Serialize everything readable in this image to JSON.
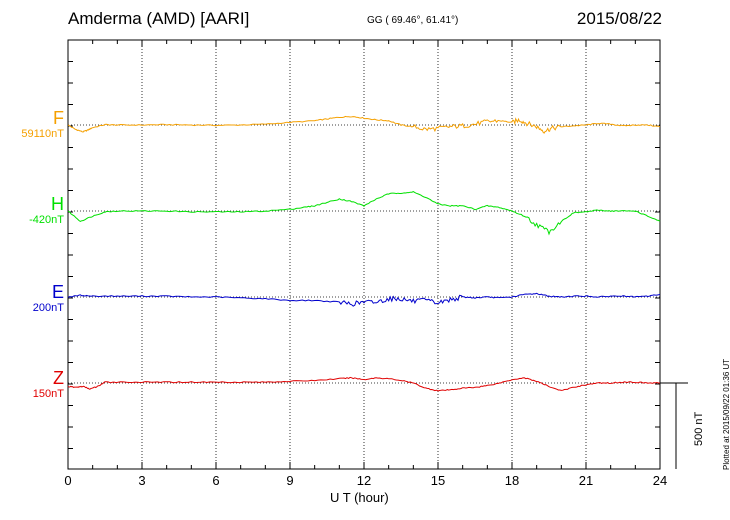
{
  "header": {
    "station": "Amderma (AMD)  [AARI]",
    "coords": "GG ( 69.46°,  61.41°)",
    "date": "2015/08/22"
  },
  "components": [
    {
      "letter": "F",
      "baseline": "59110nT",
      "color": "#f5a000"
    },
    {
      "letter": "H",
      "baseline": "-420nT",
      "color": "#00e000"
    },
    {
      "letter": "E",
      "baseline": "200nT",
      "color": "#0000cc"
    },
    {
      "letter": "Z",
      "baseline": "150nT",
      "color": "#e00000"
    }
  ],
  "scale_bar_label": "500 nT",
  "plotted_note": "Plotted at 2015/09/22 01:36 UT",
  "chart_data": {
    "type": "line",
    "xlabel": "U T (hour)",
    "xlim": [
      0,
      24
    ],
    "xticks": [
      "0",
      "3",
      "6",
      "9",
      "12",
      "15",
      "18",
      "21",
      "24"
    ],
    "grid": "dotted vertical at 3-hour ticks; dotted horizontal at each component baseline",
    "units": "nT deviation from component baseline",
    "series": [
      {
        "name": "F",
        "color": "#f5a000",
        "x": [
          0,
          0.3,
          0.6,
          0.8,
          1.0,
          1.5,
          2.0,
          3.0,
          4.0,
          5.0,
          6.0,
          7.0,
          8.0,
          9.0,
          10.0,
          10.5,
          11.0,
          11.5,
          12.0,
          12.5,
          13.0,
          13.5,
          14.0,
          14.5,
          15.0,
          15.5,
          16.0,
          16.5,
          17.0,
          17.5,
          18.0,
          18.3,
          18.6,
          19.0,
          19.3,
          19.6,
          20.0,
          20.5,
          21.0,
          21.5,
          22.0,
          22.5,
          23.0,
          23.5,
          24.0
        ],
        "y": [
          0,
          -25,
          -40,
          -30,
          -15,
          2,
          0,
          0,
          2,
          0,
          -2,
          0,
          5,
          15,
          25,
          35,
          45,
          50,
          40,
          30,
          25,
          0,
          -10,
          -25,
          -20,
          -10,
          -5,
          5,
          20,
          25,
          15,
          30,
          10,
          -10,
          -35,
          -20,
          -10,
          -5,
          0,
          10,
          5,
          -5,
          0,
          0,
          -10
        ]
      },
      {
        "name": "H",
        "color": "#00e000",
        "x": [
          0,
          0.5,
          1.0,
          1.5,
          2.0,
          3.0,
          4.0,
          5.0,
          6.0,
          7.0,
          8.0,
          9.0,
          9.5,
          10.0,
          10.5,
          11.0,
          11.5,
          12.0,
          12.5,
          13.0,
          13.5,
          14.0,
          14.5,
          15.0,
          15.5,
          16.0,
          16.5,
          17.0,
          17.5,
          18.0,
          18.5,
          19.0,
          19.5,
          20.0,
          20.5,
          21.0,
          21.5,
          22.0,
          22.5,
          23.0,
          23.5,
          24.0
        ],
        "y": [
          0,
          -60,
          -30,
          -5,
          0,
          0,
          0,
          -5,
          -5,
          -5,
          0,
          10,
          20,
          30,
          50,
          70,
          55,
          30,
          70,
          100,
          105,
          110,
          80,
          40,
          30,
          30,
          10,
          30,
          20,
          0,
          -30,
          -80,
          -120,
          -60,
          -10,
          -5,
          5,
          0,
          0,
          0,
          -30,
          -60
        ]
      },
      {
        "name": "E",
        "color": "#0000cc",
        "x": [
          0,
          0.5,
          1.0,
          2.0,
          3.0,
          4.0,
          5.0,
          6.0,
          7.0,
          8.0,
          9.0,
          10.0,
          11.0,
          11.5,
          12.0,
          12.5,
          13.0,
          13.5,
          14.0,
          14.5,
          15.0,
          15.5,
          16.0,
          16.5,
          17.0,
          17.5,
          18.0,
          18.5,
          19.0,
          19.5,
          20.0,
          20.5,
          21.0,
          21.5,
          22.0,
          22.5,
          23.0,
          23.5,
          24.0
        ],
        "y": [
          0,
          10,
          5,
          5,
          5,
          5,
          0,
          0,
          -5,
          -10,
          -20,
          -20,
          -30,
          -40,
          -30,
          -30,
          -10,
          -10,
          -25,
          -20,
          -35,
          -15,
          0,
          -5,
          0,
          -5,
          0,
          15,
          20,
          5,
          0,
          5,
          5,
          0,
          5,
          5,
          0,
          5,
          15
        ]
      },
      {
        "name": "Z",
        "color": "#e00000",
        "x": [
          0,
          0.3,
          0.6,
          0.9,
          1.2,
          1.5,
          2.0,
          3.0,
          4.0,
          5.0,
          6.0,
          7.0,
          8.0,
          9.0,
          10.0,
          11.0,
          11.5,
          12.0,
          12.5,
          13.0,
          13.5,
          14.0,
          14.5,
          15.0,
          15.5,
          16.0,
          16.5,
          17.0,
          17.5,
          18.0,
          18.5,
          19.0,
          19.5,
          20.0,
          20.5,
          21.0,
          21.5,
          22.0,
          22.5,
          23.0,
          23.5,
          24.0
        ],
        "y": [
          -20,
          -25,
          -20,
          -35,
          -20,
          5,
          5,
          5,
          5,
          5,
          5,
          5,
          5,
          10,
          15,
          25,
          30,
          20,
          30,
          25,
          15,
          0,
          -30,
          -45,
          -40,
          -30,
          -25,
          -15,
          0,
          20,
          30,
          10,
          -20,
          -45,
          -25,
          -10,
          0,
          0,
          5,
          5,
          0,
          0
        ]
      }
    ]
  }
}
